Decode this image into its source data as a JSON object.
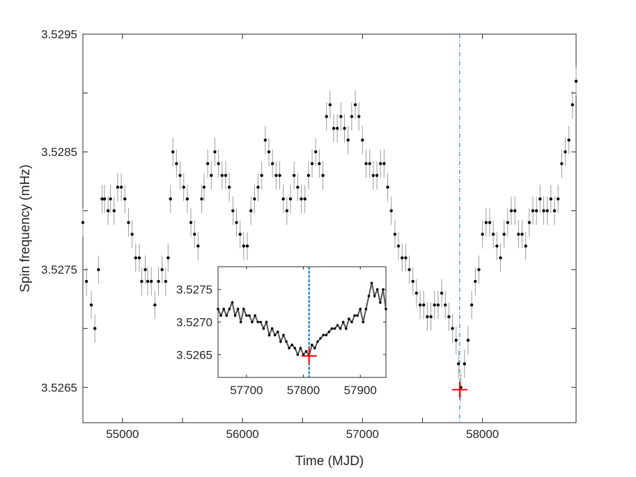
{
  "chart_data": [
    {
      "type": "scatter",
      "role": "main",
      "title": "",
      "xlabel": "Time (MJD)",
      "ylabel": "Spin frequency (mHz)",
      "xlim": [
        54670,
        58780
      ],
      "ylim": [
        3.5262,
        3.5295
      ],
      "xticks": [
        55000,
        56000,
        57000,
        58000
      ],
      "yticks": [
        3.5265,
        3.5275,
        3.5285,
        3.5295
      ],
      "x_tick_labels": [
        "55000",
        "56000",
        "57000",
        "58000"
      ],
      "y_tick_labels": [
        "3.5265",
        "3.5275",
        "3.5285",
        "3.5295"
      ],
      "marker_color": "#000000",
      "errorbar_color": "#9a9a9a",
      "grid": false,
      "legend": "none",
      "vline": {
        "x": 57810,
        "color": "#0072BD",
        "style": "dash-dot"
      },
      "highlight_marker": {
        "x": 57810,
        "y": 3.52648,
        "color": "#ff0000",
        "shape": "cross"
      },
      "series": [
        {
          "x": [
            54670,
            54700,
            54740,
            54770,
            54800,
            54830,
            54850,
            54880,
            54900,
            54930,
            54960,
            54990,
            55020,
            55050,
            55080,
            55110,
            55140,
            55160,
            55190,
            55210,
            55240,
            55270,
            55300,
            55330,
            55360,
            55380,
            55400,
            55420,
            55450,
            55480,
            55510,
            55540,
            55570,
            55600,
            55630,
            55660,
            55680,
            55710,
            55740,
            55770,
            55800,
            55830,
            55860,
            55890,
            55920,
            55950,
            55980,
            56010,
            56040,
            56070,
            56100,
            56130,
            56160,
            56190,
            56220,
            56250,
            56280,
            56310,
            56340,
            56370,
            56400,
            56430,
            56460,
            56490,
            56520,
            56550,
            56580,
            56610,
            56640,
            56670,
            56700,
            56730,
            56760,
            56790,
            56820,
            56850,
            56880,
            56910,
            56940,
            56970,
            57000,
            57030,
            57060,
            57090,
            57120,
            57150,
            57180,
            57210,
            57240,
            57270,
            57300,
            57330,
            57360,
            57390,
            57420,
            57450,
            57480,
            57510,
            57540,
            57570,
            57600,
            57630,
            57660,
            57690,
            57720,
            57750,
            57780,
            57800,
            57820,
            57850,
            57880,
            57910,
            57940,
            57970,
            58000,
            58030,
            58060,
            58090,
            58120,
            58150,
            58180,
            58210,
            58240,
            58270,
            58300,
            58330,
            58360,
            58390,
            58420,
            58450,
            58480,
            58510,
            58540,
            58570,
            58600,
            58630,
            58660,
            58690,
            58720,
            58750,
            58780
          ],
          "y": [
            3.5279,
            3.5274,
            3.5272,
            3.527,
            3.5275,
            3.5281,
            3.5281,
            3.528,
            3.5281,
            3.528,
            3.5282,
            3.5282,
            3.5281,
            3.5279,
            3.5278,
            3.5276,
            3.5276,
            3.5274,
            3.5275,
            3.5274,
            3.5274,
            3.5272,
            3.5274,
            3.5275,
            3.5274,
            3.5276,
            3.5281,
            3.5285,
            3.5284,
            3.5283,
            3.5282,
            3.5281,
            3.5279,
            3.5278,
            3.5277,
            3.5281,
            3.5282,
            3.5284,
            3.5283,
            3.5285,
            3.5284,
            3.5283,
            3.5283,
            3.5282,
            3.528,
            3.5279,
            3.5278,
            3.5277,
            3.5277,
            3.528,
            3.5281,
            3.5282,
            3.5283,
            3.5286,
            3.5285,
            3.5284,
            3.5283,
            3.5283,
            3.5281,
            3.528,
            3.5281,
            3.5283,
            3.5282,
            3.5281,
            3.5281,
            3.5283,
            3.5284,
            3.5285,
            3.5284,
            3.5283,
            3.5288,
            3.5289,
            3.5287,
            3.5287,
            3.5288,
            3.5287,
            3.5286,
            3.5288,
            3.5289,
            3.5288,
            3.5286,
            3.5284,
            3.5284,
            3.5283,
            3.5283,
            3.5284,
            3.5284,
            3.5282,
            3.528,
            3.5278,
            3.5277,
            3.5276,
            3.5276,
            3.5275,
            3.5274,
            3.5273,
            3.5272,
            3.5272,
            3.5271,
            3.5271,
            3.5272,
            3.5272,
            3.5273,
            3.5272,
            3.5271,
            3.527,
            3.5269,
            3.5267,
            3.5265,
            3.5267,
            3.5269,
            3.5272,
            3.5274,
            3.5275,
            3.5278,
            3.5279,
            3.5279,
            3.5278,
            3.5277,
            3.5276,
            3.5278,
            3.5279,
            3.528,
            3.528,
            3.5278,
            3.5278,
            3.5277,
            3.5279,
            3.528,
            3.528,
            3.5281,
            3.528,
            3.528,
            3.5281,
            3.528,
            3.5281,
            3.5284,
            3.5285,
            3.5286,
            3.5289,
            3.5291
          ]
        }
      ]
    },
    {
      "type": "line",
      "role": "inset",
      "title": "",
      "xlabel": "",
      "ylabel": "",
      "xlim": [
        57650,
        57945
      ],
      "ylim": [
        3.52615,
        3.52785
      ],
      "xticks": [
        57700,
        57800,
        57900
      ],
      "yticks": [
        3.5265,
        3.527,
        3.5275
      ],
      "x_tick_labels": [
        "57700",
        "57800",
        "57900"
      ],
      "y_tick_labels": [
        "3.5265",
        "3.5270",
        "3.5275"
      ],
      "line_color": "#555555",
      "marker_color": "#000000",
      "grid": false,
      "legend": "none",
      "vline": {
        "x": 57810,
        "color": "#0072BD",
        "style": "dashed"
      },
      "highlight_marker": {
        "x": 57810,
        "y": 3.52648,
        "color": "#ff0000",
        "shape": "cross"
      },
      "series": [
        {
          "x": [
            57650,
            57655,
            57660,
            57665,
            57670,
            57675,
            57680,
            57685,
            57690,
            57695,
            57700,
            57705,
            57710,
            57715,
            57720,
            57725,
            57730,
            57735,
            57740,
            57745,
            57750,
            57755,
            57760,
            57765,
            57770,
            57775,
            57780,
            57785,
            57790,
            57795,
            57800,
            57805,
            57810,
            57815,
            57820,
            57825,
            57830,
            57835,
            57840,
            57845,
            57850,
            57855,
            57860,
            57865,
            57870,
            57875,
            57880,
            57885,
            57890,
            57895,
            57900,
            57905,
            57910,
            57915,
            57920,
            57925,
            57930,
            57935,
            57940,
            57945
          ],
          "y": [
            3.5272,
            3.5271,
            3.5272,
            3.5271,
            3.5272,
            3.5273,
            3.5271,
            3.5272,
            3.527,
            3.5272,
            3.5271,
            3.5271,
            3.527,
            3.5271,
            3.527,
            3.527,
            3.5269,
            3.527,
            3.5268,
            3.5269,
            3.5268,
            3.52685,
            3.5267,
            3.5268,
            3.5267,
            3.5266,
            3.52665,
            3.5266,
            3.5265,
            3.5266,
            3.5265,
            3.52655,
            3.52648,
            3.52665,
            3.5266,
            3.5267,
            3.52675,
            3.5268,
            3.5268,
            3.52685,
            3.5269,
            3.5269,
            3.52695,
            3.5269,
            3.527,
            3.5269,
            3.52705,
            3.527,
            3.5271,
            3.5271,
            3.5272,
            3.527,
            3.5272,
            3.5274,
            3.5276,
            3.5274,
            3.5275,
            3.5273,
            3.5275,
            3.5272
          ]
        }
      ]
    }
  ]
}
